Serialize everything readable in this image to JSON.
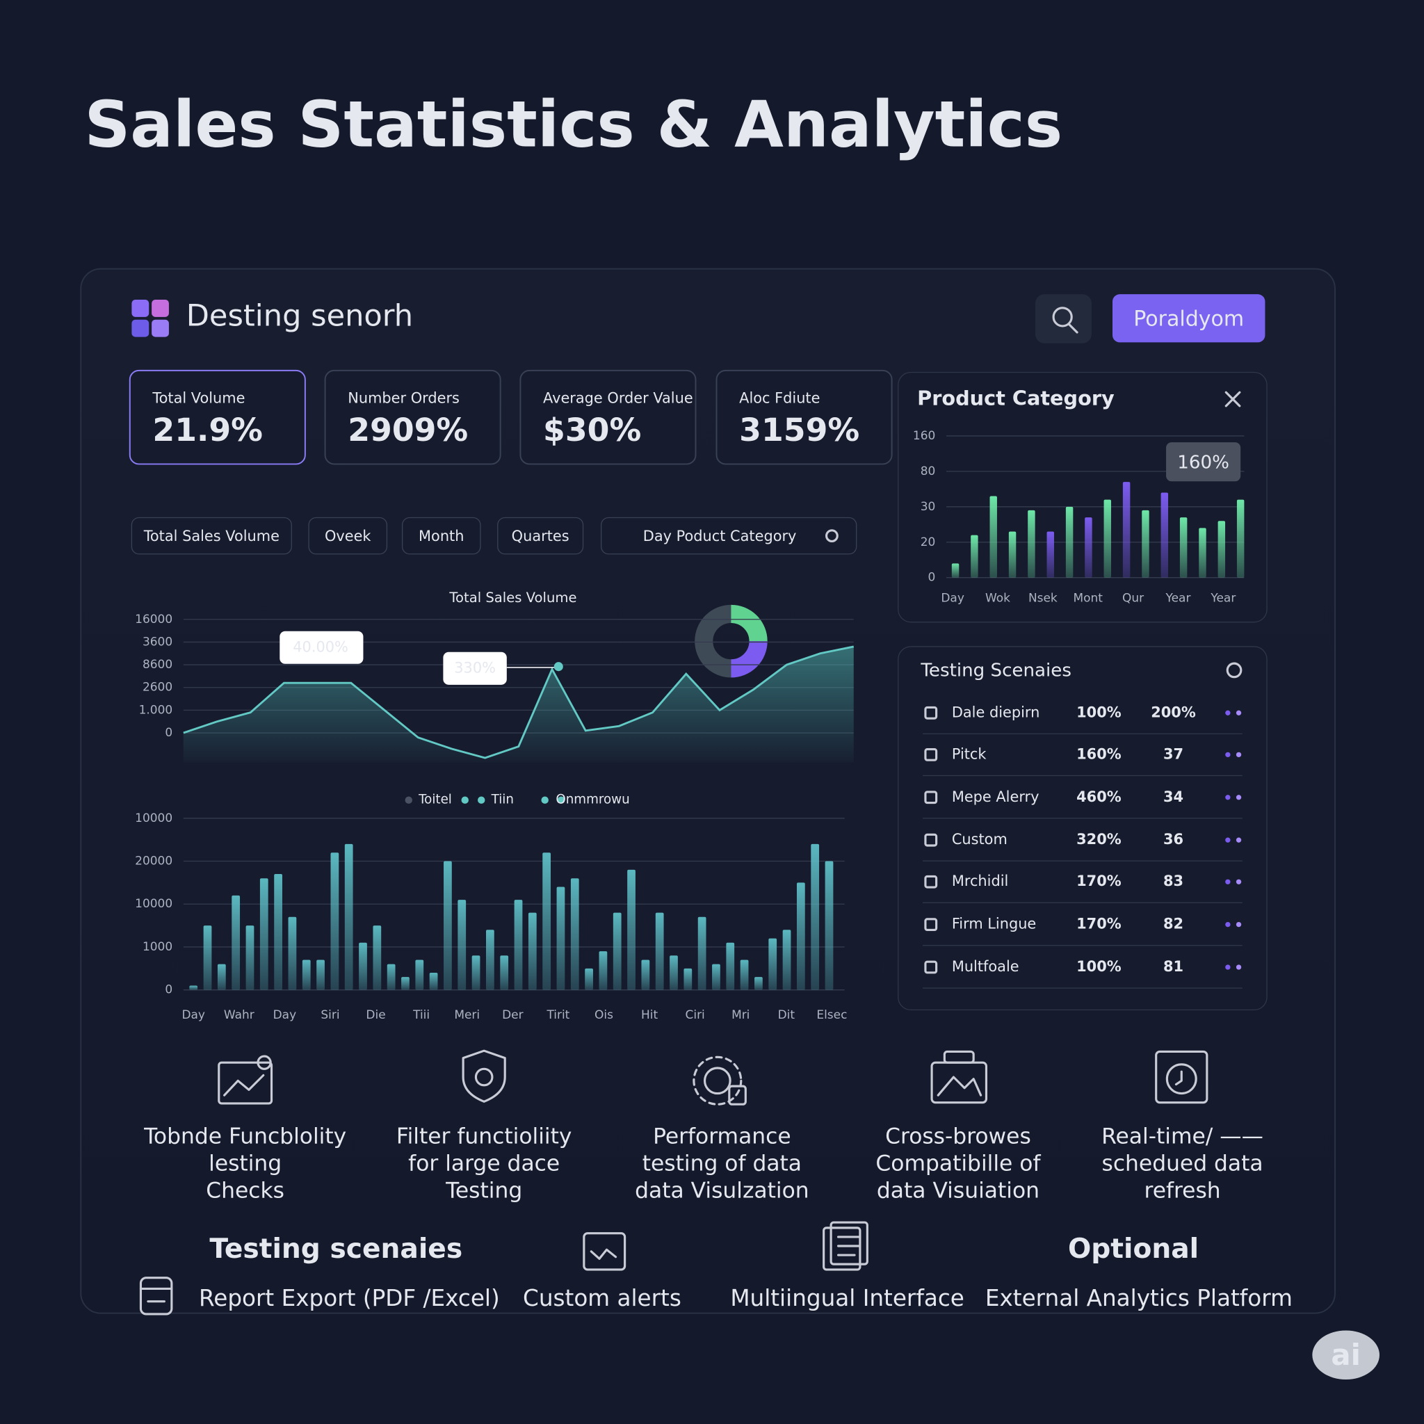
{
  "header": {
    "title": "Sales Statistics & Analytics"
  },
  "panel": {
    "brand": "Desting senorh",
    "button": "Poraldyom"
  },
  "kpis": [
    {
      "label": "Total Volume",
      "value": "21.9%"
    },
    {
      "label": "Number Orders",
      "value": "2909%"
    },
    {
      "label": "Average Order Value",
      "value": "$30%"
    },
    {
      "label": "Aloc Fdiute",
      "value": "3159%"
    }
  ],
  "filters": [
    "Total Sales Volume",
    "Oveek",
    "Month",
    "Quartes",
    "Day  Poduct Category"
  ],
  "chart_data": [
    {
      "type": "area",
      "title": "Total Sales Volume",
      "color": "#62c9c4",
      "values": [
        0,
        0.5,
        0.9,
        2.2,
        2.2,
        2.2,
        1.0,
        -0.2,
        -0.7,
        -1.1,
        -0.6,
        2.8,
        0.1,
        0.3,
        0.9,
        2.6,
        1.0,
        1.9,
        3.0,
        3.5,
        3.8
      ],
      "ylim": [
        -1.3,
        5
      ],
      "yticks": [
        0,
        {
          "value": 1,
          "label": "1.000"
        },
        {
          "value": 2,
          "label": "2600"
        },
        {
          "value": 3,
          "label": "8600"
        },
        {
          "value": 4,
          "label": "3600"
        },
        {
          "value": 5,
          "label": "16000"
        }
      ],
      "grid": true,
      "annotations": [
        "40.00%",
        "330%"
      ],
      "legend": [
        "Toitel",
        "Tiin",
        "Onmmrowu"
      ]
    },
    {
      "type": "bar",
      "title": "Product Category",
      "values": [
        0.4,
        1.2,
        2.3,
        1.3,
        1.9,
        1.3,
        2.0,
        1.7,
        2.2,
        2.7,
        1.9,
        2.4,
        1.7,
        1.4,
        1.6,
        2.2
      ],
      "colors": [
        "#6ee7a8",
        "#6ee7a8",
        "#6ee7a8",
        "#6ee7a8",
        "#6ee7a8",
        "#7c5cf0",
        "#6ee7a8",
        "#7c5cf0",
        "#6ee7a8",
        "#7c5cf0",
        "#6ee7a8",
        "#7c5cf0",
        "#6ee7a8",
        "#6ee7a8",
        "#6ee7a8",
        "#6ee7a8"
      ],
      "x_labels": [
        "Day",
        "Wok",
        "Nsek",
        "Mont",
        "Qur",
        "Year",
        "Year"
      ],
      "ylim": [
        0,
        4
      ],
      "yticks": [
        0,
        {
          "value": 1,
          "label": "20"
        },
        {
          "value": 2,
          "label": "30"
        },
        {
          "value": 3,
          "label": "80"
        },
        {
          "value": 4,
          "label": "160"
        }
      ],
      "grid": true,
      "annotation": "160%"
    },
    {
      "type": "bar",
      "color": "#5bb8c0",
      "values": [
        0.1,
        1.5,
        0.6,
        2.2,
        1.5,
        2.6,
        2.7,
        1.7,
        0.7,
        0.7,
        3.2,
        3.4,
        1.1,
        1.5,
        0.6,
        0.3,
        0.7,
        0.4,
        3.0,
        2.1,
        0.8,
        1.4,
        0.8,
        2.1,
        1.8,
        3.2,
        2.4,
        2.6,
        0.5,
        0.9,
        1.8,
        2.8,
        0.7,
        1.8,
        0.8,
        0.5,
        1.7,
        0.6,
        1.1,
        0.7,
        0.3,
        1.2,
        1.4,
        2.5,
        3.4,
        3.0
      ],
      "x_labels": [
        "Day",
        "Wahr",
        "Day",
        "Siri",
        "Die",
        "Tiii",
        "Meri",
        "Der",
        "Tirit",
        "Ois",
        "Hit",
        "Ciri",
        "Mri",
        "Dit",
        "Elsec"
      ],
      "ylim": [
        0,
        4
      ],
      "yticks": [
        0,
        {
          "value": 1,
          "label": "1000"
        },
        {
          "value": 2,
          "label": "10000"
        },
        {
          "value": 3,
          "label": "20000"
        },
        {
          "value": 4,
          "label": "10000"
        }
      ],
      "grid": true
    }
  ],
  "table": {
    "title": "Testing Scenaies",
    "rows": [
      [
        "Dale diepirn",
        "100%",
        "200%"
      ],
      [
        "Pitck",
        "160%",
        "37"
      ],
      [
        "Mepe Alerry",
        "460%",
        "34"
      ],
      [
        "Custom",
        "320%",
        "36"
      ],
      [
        "Mrchidil",
        "170%",
        "83"
      ],
      [
        "Firm Lingue",
        "170%",
        "82"
      ],
      [
        "Multfoale",
        "100%",
        "81"
      ]
    ]
  },
  "features": [
    [
      "Tobnde Funcblolity",
      "lesting",
      "Checks"
    ],
    [
      "Filter functioliity",
      "for large dace",
      "Testing"
    ],
    [
      "Performance",
      "testing of data",
      "data Visulzation"
    ],
    [
      "Cross-browes",
      "Compatibille of",
      "data Visuiation"
    ],
    [
      "Real-time/ ——",
      "schedued data",
      "refresh"
    ]
  ],
  "bottom": {
    "heading_left": "Testing scenaies",
    "heading_right": "Optional",
    "items": [
      "Report Export (PDF /Excel)",
      "Custom alerts",
      "Multiingual Interface",
      "External Analytics Platform"
    ]
  },
  "badge": "ai"
}
